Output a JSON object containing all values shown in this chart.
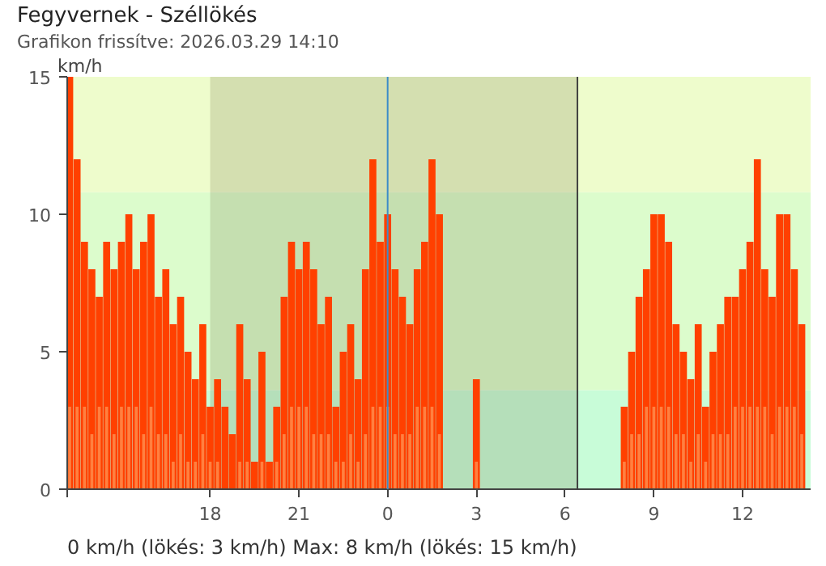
{
  "chart_data": {
    "type": "bar",
    "title": "Fegyvernek - Széllökés",
    "subtitle": "Grafikon frissítve: 2026.03.29 14:10",
    "ylabel": "km/h",
    "annotations": [
      "0 km/h  (lökés: 3 km/h)  Max: 8 km/h (lökés: 15 km/h)"
    ],
    "x": [
      "2026-03-28T13:15",
      "2026-03-28T13:30",
      "2026-03-28T13:45",
      "2026-03-28T14:00",
      "2026-03-28T14:15",
      "2026-03-28T14:30",
      "2026-03-28T14:45",
      "2026-03-28T15:00",
      "2026-03-28T15:15",
      "2026-03-28T15:30",
      "2026-03-28T15:45",
      "2026-03-28T16:00",
      "2026-03-28T16:15",
      "2026-03-28T16:30",
      "2026-03-28T16:45",
      "2026-03-28T17:00",
      "2026-03-28T17:15",
      "2026-03-28T17:30",
      "2026-03-28T17:45",
      "2026-03-28T18:00",
      "2026-03-28T18:15",
      "2026-03-28T18:30",
      "2026-03-28T18:45",
      "2026-03-28T19:00",
      "2026-03-28T19:15",
      "2026-03-28T19:30",
      "2026-03-28T19:45",
      "2026-03-28T20:00",
      "2026-03-28T20:15",
      "2026-03-28T20:30",
      "2026-03-28T20:45",
      "2026-03-28T21:00",
      "2026-03-28T21:15",
      "2026-03-28T21:30",
      "2026-03-28T21:45",
      "2026-03-28T22:00",
      "2026-03-28T22:15",
      "2026-03-28T22:30",
      "2026-03-28T22:45",
      "2026-03-28T23:00",
      "2026-03-28T23:15",
      "2026-03-28T23:30",
      "2026-03-28T23:45",
      "2026-03-29T00:00",
      "2026-03-29T00:15",
      "2026-03-29T00:30",
      "2026-03-29T00:45",
      "2026-03-29T01:00",
      "2026-03-29T01:15",
      "2026-03-29T01:30",
      "2026-03-29T01:45",
      "2026-03-29T03:00",
      "2026-03-29T03:15",
      "2026-03-29T03:30",
      "2026-03-29T03:45",
      "2026-03-29T04:00",
      "2026-03-29T04:15",
      "2026-03-29T04:30",
      "2026-03-29T04:45",
      "2026-03-29T05:00",
      "2026-03-29T05:15",
      "2026-03-29T05:30",
      "2026-03-29T05:45",
      "2026-03-29T06:00",
      "2026-03-29T06:15",
      "2026-03-29T06:30",
      "2026-03-29T06:45",
      "2026-03-29T07:00",
      "2026-03-29T07:15",
      "2026-03-29T07:30",
      "2026-03-29T07:45",
      "2026-03-29T08:00",
      "2026-03-29T08:15",
      "2026-03-29T08:30",
      "2026-03-29T08:45",
      "2026-03-29T09:00",
      "2026-03-29T09:15",
      "2026-03-29T09:30",
      "2026-03-29T09:45",
      "2026-03-29T10:00",
      "2026-03-29T10:15",
      "2026-03-29T10:30",
      "2026-03-29T10:45",
      "2026-03-29T11:00",
      "2026-03-29T11:15",
      "2026-03-29T11:30",
      "2026-03-29T11:45",
      "2026-03-29T12:00",
      "2026-03-29T12:15",
      "2026-03-29T12:30",
      "2026-03-29T12:45",
      "2026-03-29T13:00",
      "2026-03-29T13:15",
      "2026-03-29T13:30",
      "2026-03-29T13:45",
      "2026-03-29T14:00"
    ],
    "series": [
      {
        "color": "#ff4000",
        "values": [
          15,
          12,
          9,
          8,
          7,
          9,
          8,
          9,
          10,
          8,
          9,
          10,
          7,
          8,
          6,
          7,
          5,
          4,
          6,
          3,
          4,
          3,
          2,
          6,
          4,
          1,
          5,
          1,
          3,
          7,
          9,
          8,
          9,
          8,
          6,
          7,
          3,
          5,
          6,
          4,
          8,
          12,
          9,
          10,
          8,
          7,
          6,
          8,
          9,
          12,
          10,
          4,
          0,
          0,
          0,
          0,
          0,
          0,
          0,
          0,
          0,
          0,
          0,
          0,
          0,
          0,
          0,
          0,
          0,
          0,
          0,
          3,
          5,
          7,
          8,
          10,
          10,
          9,
          6,
          5,
          4,
          6,
          3,
          5,
          6,
          7,
          7,
          8,
          9,
          12,
          8,
          7,
          10,
          10,
          8,
          6
        ]
      },
      {
        "color": "#ff8040",
        "values": [
          3,
          3,
          3,
          2,
          3,
          3,
          2,
          3,
          3,
          3,
          2,
          3,
          2,
          2,
          1,
          2,
          1,
          1,
          2,
          1,
          1,
          0,
          0,
          1,
          1,
          0,
          1,
          0,
          1,
          2,
          3,
          3,
          3,
          2,
          2,
          2,
          1,
          1,
          2,
          1,
          2,
          3,
          3,
          3,
          2,
          2,
          2,
          3,
          3,
          3,
          2,
          1,
          0,
          0,
          0,
          0,
          0,
          0,
          0,
          0,
          0,
          0,
          0,
          0,
          0,
          0,
          0,
          0,
          0,
          0,
          0,
          1,
          2,
          2,
          3,
          3,
          3,
          3,
          2,
          2,
          1,
          2,
          1,
          2,
          2,
          2,
          3,
          3,
          3,
          3,
          3,
          2,
          3,
          3,
          3,
          2
        ]
      }
    ],
    "xlim": [
      "2026-03-28T13:10",
      "2026-03-29T14:18"
    ],
    "xticks": [
      {
        "value": "2026-03-28T13:10",
        "label": null
      },
      {
        "value": "2026-03-28T18:00",
        "label": "18"
      },
      {
        "value": "2026-03-28T21:00",
        "label": "21"
      },
      {
        "value": "2026-03-29T00:00",
        "label": "0"
      },
      {
        "value": "2026-03-29T03:00",
        "label": "3"
      },
      {
        "value": "2026-03-29T06:00",
        "label": "6"
      },
      {
        "value": "2026-03-29T09:00",
        "label": "9"
      },
      {
        "value": "2026-03-29T12:00",
        "label": "12"
      }
    ],
    "ylim": [
      0,
      15
    ],
    "yticks": [
      0,
      5,
      10,
      15
    ],
    "bands": [
      {
        "axis": "y",
        "from": 0,
        "to": 3.6,
        "color": "#c8fcd8"
      },
      {
        "axis": "y",
        "from": 3.6,
        "to": 10.8,
        "color": "#dcfccc"
      },
      {
        "axis": "y",
        "from": 10.8,
        "to": 15,
        "color": "#eefccc"
      },
      {
        "axis": "x",
        "from": "2026-03-28T18:00",
        "to": "2026-03-29T06:25",
        "color": "#606030"
      }
    ],
    "ref_lines": [
      {
        "axis": "x",
        "value": "2026-03-29T00:00",
        "color": "#3c8cc8"
      },
      {
        "axis": "x",
        "value": "2026-03-29T06:25",
        "color": "#404040"
      }
    ],
    "grid": false
  }
}
